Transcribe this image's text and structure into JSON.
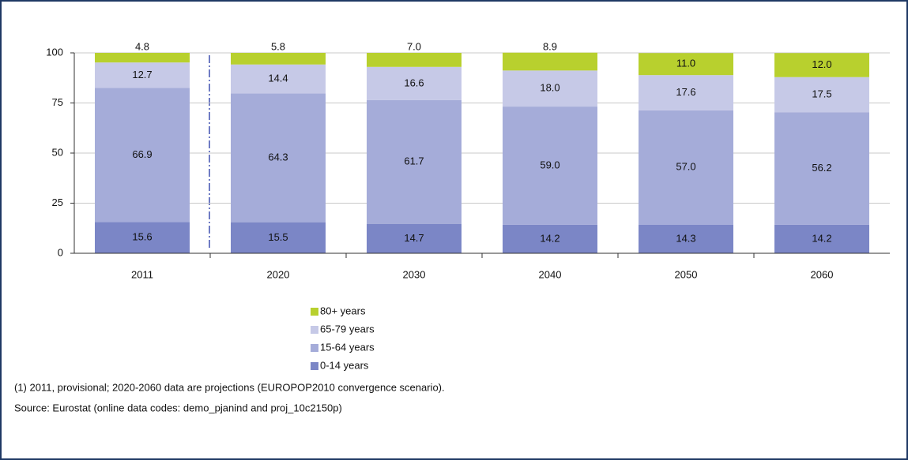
{
  "chart_data": {
    "type": "stacked_bar",
    "categories": [
      "2011",
      "2020",
      "2030",
      "2040",
      "2050",
      "2060"
    ],
    "series": [
      {
        "name": "0-14 years",
        "color": "#7b86c6",
        "values": [
          15.6,
          15.5,
          14.7,
          14.2,
          14.3,
          14.2
        ],
        "value_labels": [
          "15.6",
          "15.5",
          "14.7",
          "14.2",
          "14.3",
          "14.2"
        ]
      },
      {
        "name": "15-64 years",
        "color": "#a5acd9",
        "values": [
          66.9,
          64.3,
          61.7,
          59.0,
          57.0,
          56.2
        ],
        "value_labels": [
          "66.9",
          "64.3",
          "61.7",
          "59.0",
          "57.0",
          "56.2"
        ]
      },
      {
        "name": "65-79 years",
        "color": "#c6c9e7",
        "values": [
          12.7,
          14.4,
          16.6,
          18.0,
          17.6,
          17.5
        ],
        "value_labels": [
          "12.7",
          "14.4",
          "16.6",
          "18.0",
          "17.6",
          "17.5"
        ]
      },
      {
        "name": "80+ years",
        "color": "#b8d02e",
        "values": [
          4.8,
          5.8,
          7.0,
          8.9,
          11.0,
          12.0
        ],
        "value_labels": [
          "4.8",
          "5.8",
          "7.0",
          "8.9",
          "11.0",
          "12.0"
        ]
      }
    ],
    "ylim": [
      0,
      100
    ],
    "yticks": [
      0,
      25,
      50,
      75,
      100
    ],
    "grid": true,
    "notes": [
      "(1) 2011, provisional; 2020-2060 data are projections (EUROPOP2010 convergence scenario).",
      "Source: Eurostat (online data codes: demo_pjanind and proj_10c2150p)"
    ]
  }
}
